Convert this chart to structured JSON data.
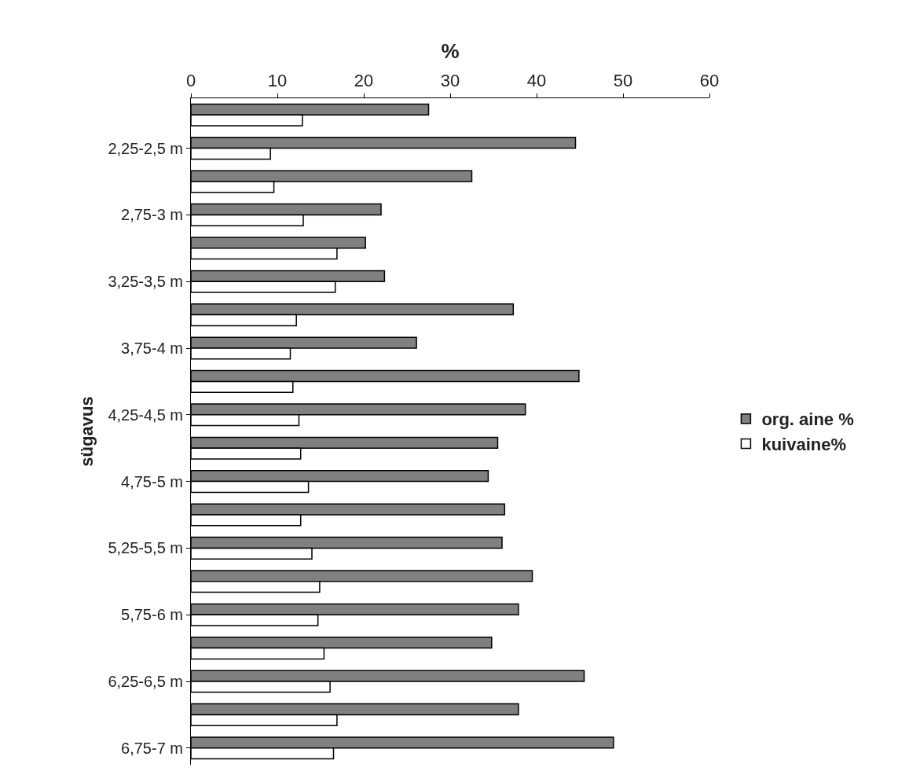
{
  "chart_data": {
    "type": "bar",
    "orientation": "horizontal",
    "xlabel": "%",
    "ylabel": "sügavus",
    "categories": [
      null,
      "2,25-2,5 m",
      null,
      "2,75-3 m",
      null,
      "3,25-3,5 m",
      null,
      "3,75-4 m",
      null,
      "4,25-4,5 m",
      null,
      "4,75-5 m",
      null,
      "5,25-5,5 m",
      null,
      "5,75-6 m",
      null,
      "6,25-6,5 m",
      null,
      "6,75-7 m"
    ],
    "series": [
      {
        "name": "org. aine %",
        "color": "#808080",
        "values": [
          27.5,
          44.5,
          32.5,
          22.0,
          20.2,
          22.4,
          37.3,
          26.1,
          44.9,
          38.7,
          35.5,
          34.4,
          36.3,
          36.0,
          39.5,
          37.9,
          34.8,
          45.5,
          37.9,
          48.9
        ]
      },
      {
        "name": "kuivaine%",
        "color": "#ffffff",
        "values": [
          12.9,
          9.2,
          9.6,
          13.0,
          16.9,
          16.7,
          12.2,
          11.5,
          11.8,
          12.5,
          12.7,
          13.6,
          12.7,
          14.0,
          14.9,
          14.7,
          15.4,
          16.1,
          16.9,
          16.5
        ]
      }
    ],
    "xlim": [
      0,
      60
    ],
    "xticks": [
      0,
      10,
      20,
      30,
      40,
      50,
      60
    ],
    "grid": false,
    "legend": "right"
  }
}
